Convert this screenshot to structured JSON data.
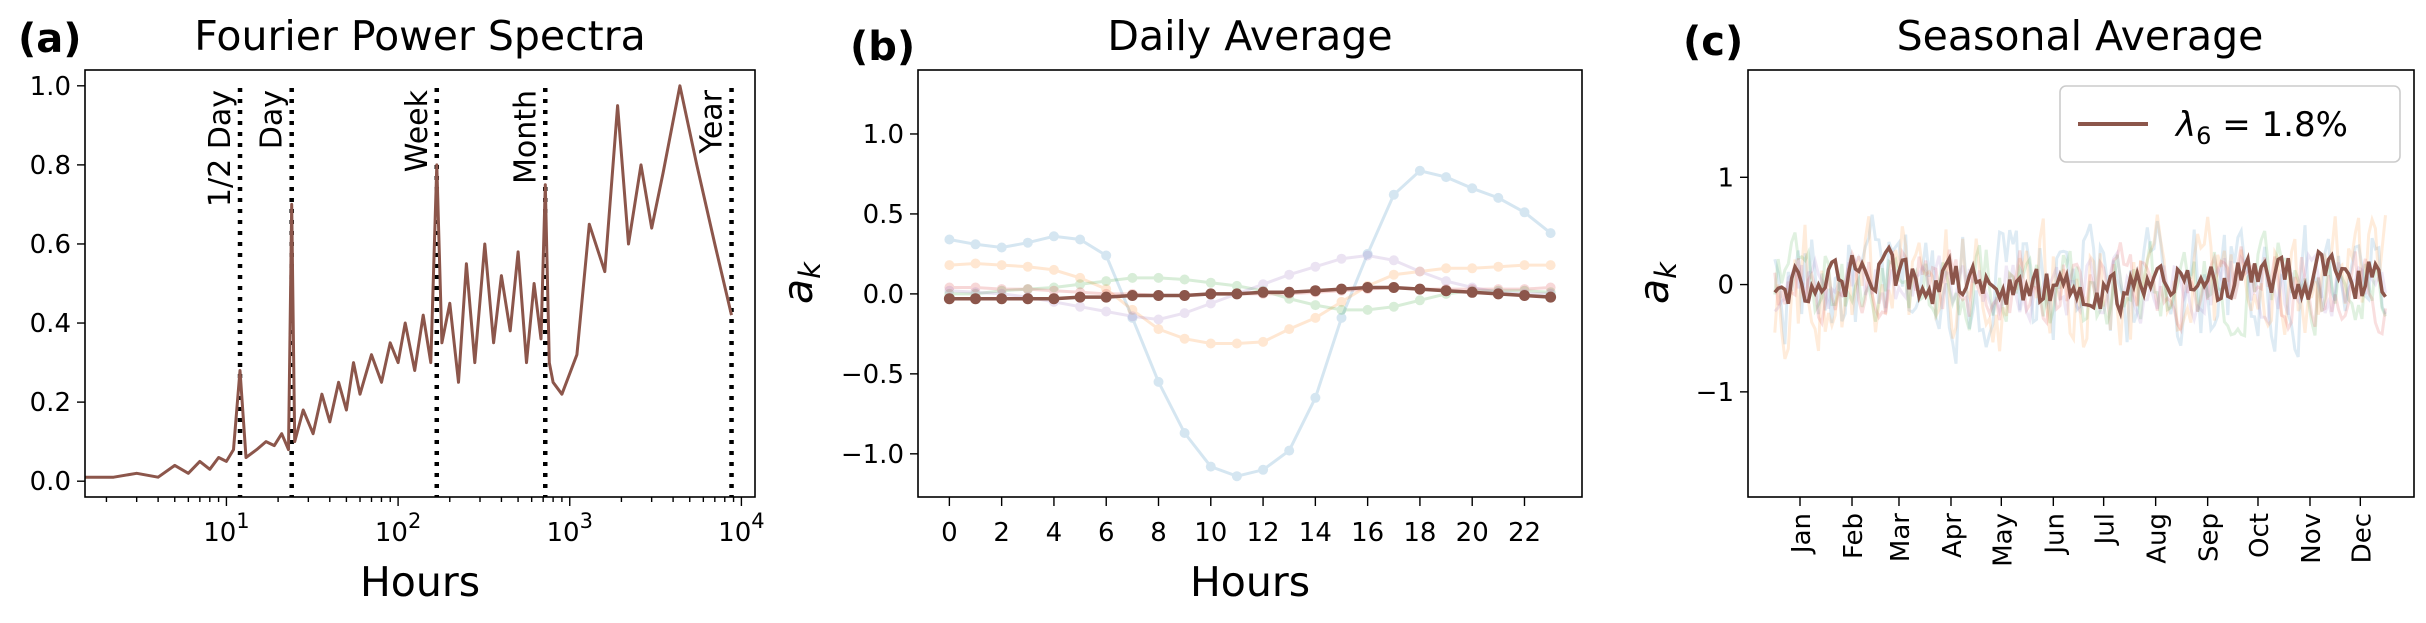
{
  "colors": {
    "main": "#8c564b",
    "faded": [
      "#1f77b4",
      "#ff7f0e",
      "#2ca02c",
      "#d62728",
      "#9467bd"
    ]
  },
  "chart_data": [
    {
      "panel_label": "(a)",
      "type": "line",
      "title": "Fourier Power Spectra",
      "xlabel": "Hours",
      "ylabel": "",
      "xscale": "log",
      "xlim": [
        1.5,
        12000
      ],
      "ylim": [
        -0.04,
        1.04
      ],
      "xticks": [
        {
          "value": 10,
          "base": "10",
          "exp": "1"
        },
        {
          "value": 100,
          "base": "10",
          "exp": "2"
        },
        {
          "value": 1000,
          "base": "10",
          "exp": "3"
        },
        {
          "value": 10000,
          "base": "10",
          "exp": "4"
        }
      ],
      "yticks": [
        0.0,
        0.2,
        0.4,
        0.6,
        0.8,
        1.0
      ],
      "vlines": [
        {
          "label": "1/2 Day",
          "x": 12
        },
        {
          "label": "Day",
          "x": 24
        },
        {
          "label": "Week",
          "x": 168
        },
        {
          "label": "Month",
          "x": 720
        },
        {
          "label": "Year",
          "x": 8760
        }
      ],
      "series": [
        {
          "x": [
            1.5,
            2.2,
            3,
            4,
            5,
            6,
            7,
            8,
            9,
            10,
            11,
            12,
            13,
            15,
            17,
            19,
            21,
            23,
            24,
            25,
            28,
            32,
            36,
            40,
            45,
            50,
            55,
            60,
            70,
            80,
            90,
            100,
            110,
            125,
            140,
            155,
            168,
            180,
            200,
            225,
            250,
            280,
            320,
            360,
            400,
            450,
            500,
            560,
            620,
            680,
            720,
            760,
            800,
            900,
            1100,
            1300,
            1600,
            1900,
            2200,
            2600,
            3000,
            3500,
            4380,
            5500,
            7000,
            8760
          ],
          "y": [
            0.01,
            0.01,
            0.02,
            0.01,
            0.04,
            0.02,
            0.05,
            0.03,
            0.06,
            0.05,
            0.08,
            0.28,
            0.06,
            0.08,
            0.1,
            0.09,
            0.12,
            0.08,
            0.7,
            0.1,
            0.18,
            0.12,
            0.22,
            0.15,
            0.25,
            0.18,
            0.3,
            0.22,
            0.32,
            0.25,
            0.35,
            0.3,
            0.4,
            0.28,
            0.42,
            0.3,
            0.8,
            0.35,
            0.45,
            0.25,
            0.55,
            0.3,
            0.6,
            0.35,
            0.52,
            0.38,
            0.58,
            0.3,
            0.5,
            0.36,
            0.75,
            0.3,
            0.25,
            0.22,
            0.32,
            0.65,
            0.53,
            0.95,
            0.6,
            0.8,
            0.64,
            0.78,
            1.0,
            0.8,
            0.6,
            0.42
          ]
        }
      ]
    },
    {
      "panel_label": "(b)",
      "type": "line",
      "title": "Daily Average",
      "xlabel": "Hours",
      "ylabel": "a",
      "ylabel_sub": "k",
      "xlim": [
        -1.2,
        24.2
      ],
      "ylim": [
        -1.27,
        1.4
      ],
      "xticks": [
        0,
        2,
        4,
        6,
        8,
        10,
        12,
        14,
        16,
        18,
        20,
        22
      ],
      "yticks": [
        -1.0,
        -0.5,
        0.0,
        0.5,
        1.0
      ],
      "ytick_labels": [
        "−1.0",
        "−0.5",
        "0.0",
        "0.5",
        "1.0"
      ],
      "x": [
        0,
        1,
        2,
        3,
        4,
        5,
        6,
        7,
        8,
        9,
        10,
        11,
        12,
        13,
        14,
        15,
        16,
        17,
        18,
        19,
        20,
        21,
        22,
        23
      ],
      "series": [
        {
          "y": [
            0.34,
            0.31,
            0.29,
            0.32,
            0.36,
            0.34,
            0.24,
            -0.15,
            -0.55,
            -0.87,
            -1.08,
            -1.14,
            -1.1,
            -0.98,
            -0.65,
            -0.15,
            0.25,
            0.62,
            0.77,
            0.73,
            0.66,
            0.6,
            0.51,
            0.38
          ]
        },
        {
          "y": [
            0.18,
            0.19,
            0.18,
            0.17,
            0.15,
            0.1,
            0.03,
            -0.1,
            -0.22,
            -0.28,
            -0.31,
            -0.31,
            -0.3,
            -0.22,
            -0.15,
            -0.05,
            0.05,
            0.12,
            0.14,
            0.16,
            0.16,
            0.17,
            0.18,
            0.18
          ]
        },
        {
          "y": [
            0.0,
            0.0,
            0.02,
            0.03,
            0.04,
            0.06,
            0.08,
            0.1,
            0.1,
            0.09,
            0.07,
            0.05,
            0.02,
            -0.03,
            -0.07,
            -0.1,
            -0.1,
            -0.08,
            -0.04,
            0.0,
            0.02,
            0.02,
            0.02,
            0.01
          ]
        },
        {
          "y": [
            0.04,
            0.04,
            0.03,
            0.03,
            0.02,
            0.01,
            0.0,
            0.0,
            -0.01,
            -0.01,
            0.0,
            0.0,
            0.0,
            0.0,
            0.01,
            0.02,
            0.03,
            0.04,
            0.03,
            0.03,
            0.03,
            0.03,
            0.03,
            0.04
          ]
        },
        {
          "y": [
            0.02,
            0.01,
            0.0,
            -0.02,
            -0.05,
            -0.08,
            -0.11,
            -0.14,
            -0.16,
            -0.12,
            -0.06,
            0.0,
            0.06,
            0.12,
            0.17,
            0.22,
            0.24,
            0.21,
            0.14,
            0.08,
            0.04,
            0.01,
            0.0,
            0.0
          ]
        },
        {
          "y": [
            -0.03,
            -0.03,
            -0.03,
            -0.03,
            -0.03,
            -0.02,
            -0.02,
            -0.01,
            -0.01,
            -0.01,
            0.0,
            0.0,
            0.01,
            0.01,
            0.02,
            0.03,
            0.04,
            0.04,
            0.03,
            0.02,
            0.01,
            0.0,
            -0.01,
            -0.02
          ]
        }
      ]
    },
    {
      "panel_label": "(c)",
      "type": "line",
      "title": "Seasonal Average",
      "xlabel": "",
      "ylabel": "a",
      "ylabel_sub": "k",
      "xlim": [
        -16,
        381
      ],
      "ylim": [
        -1.98,
        2.0
      ],
      "xticks": [
        15,
        46,
        74,
        105,
        135,
        166,
        196,
        227,
        258,
        288,
        319,
        349
      ],
      "xtick_labels": [
        "Jan",
        "Feb",
        "Mar",
        "Apr",
        "May",
        "Jun",
        "Jul",
        "Aug",
        "Sep",
        "Oct",
        "Nov",
        "Dec"
      ],
      "yticks": [
        -1,
        0,
        1
      ],
      "ytick_labels": [
        "−1",
        "0",
        "1"
      ],
      "legend": {
        "text_main": "λ",
        "text_sub": "6",
        "text_rest": " = 1.8%",
        "position": "top-right"
      },
      "series": [
        {
          "amplitude": 0.5,
          "main": false
        },
        {
          "amplitude": 0.5,
          "main": false
        },
        {
          "amplitude": 0.35,
          "main": false
        },
        {
          "amplitude": 0.3,
          "main": false
        },
        {
          "amplitude": 0.25,
          "main": false
        },
        {
          "amplitude": 0.2,
          "main": true
        }
      ]
    }
  ]
}
